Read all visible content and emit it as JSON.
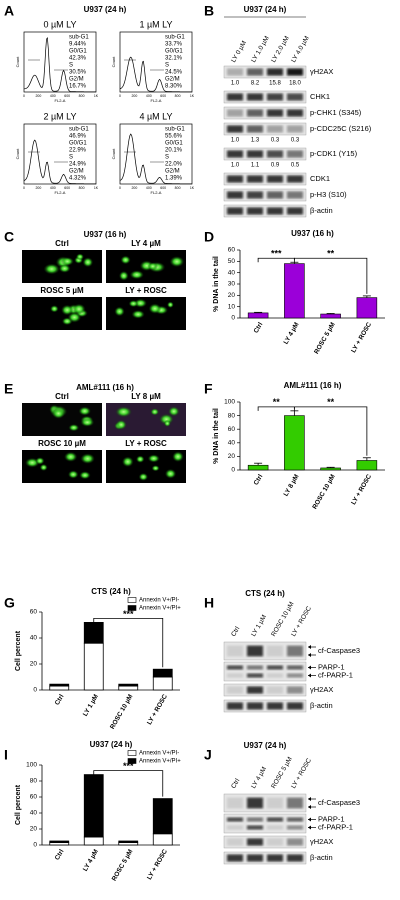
{
  "panels": {
    "A": {
      "label": "A",
      "title": "U937 (24 h)",
      "x_label": "FL2-A",
      "y_label": "Count",
      "x_ticks": [
        "0",
        "200",
        "400",
        "600",
        "800",
        "1K"
      ],
      "histograms": [
        {
          "title": "0 µM LY",
          "stats": [
            "sub-G1",
            "9.44%",
            "G0/G1",
            "42.3%",
            "S",
            "30.5%",
            "G2/M",
            "16.7%"
          ]
        },
        {
          "title": "1 µM LY",
          "stats": [
            "sub-G1",
            "33.7%",
            "G0/G1",
            "32.1%",
            "S",
            "24.5%",
            "G2/M",
            "8.30%"
          ]
        },
        {
          "title": "2 µM LY",
          "stats": [
            "sub-G1",
            "46.9%",
            "G0/G1",
            "22.9%",
            "S",
            "24.9%",
            "G2/M",
            "4.32%"
          ]
        },
        {
          "title": "4 µM LY",
          "stats": [
            "sub-G1",
            "55.6%",
            "G0/G1",
            "20.1%",
            "S",
            "22.0%",
            "G2/M",
            "1.39%"
          ]
        }
      ]
    },
    "B": {
      "label": "B",
      "title": "U937 (24 h)",
      "lanes": [
        "LY 0 µM",
        "LY 1.0 µM",
        "LY 2.0 µM",
        "LY 4.0 µM"
      ],
      "rows": [
        {
          "name": "γH2AX",
          "quant": [
            "1.0",
            "8.2",
            "15.8",
            "18.0"
          ]
        },
        {
          "name": "CHK1"
        },
        {
          "name": "p-CHK1 (S345)"
        },
        {
          "name": "p-CDC25C (S216)",
          "quant": [
            "1.0",
            "1.3",
            "0.3",
            "0.3"
          ]
        },
        {
          "name": "p-CDK1 (Y15)",
          "quant": [
            "1.0",
            "1.1",
            "0.9",
            "0.5"
          ]
        },
        {
          "name": "CDK1"
        },
        {
          "name": "p-H3 (S10)"
        },
        {
          "name": "β-actin"
        }
      ]
    },
    "C": {
      "label": "C",
      "title": "U937 (16 h)",
      "images": [
        "Ctrl",
        "LY 4 µM",
        "ROSC 5 µM",
        "LY + ROSC"
      ]
    },
    "D": {
      "label": "D"
    },
    "E": {
      "label": "E",
      "title": "AML#111 (16 h)",
      "images": [
        "Ctrl",
        "LY 8 µM",
        "ROSC 10 µM",
        "LY + ROSC"
      ]
    },
    "F": {
      "label": "F"
    },
    "G": {
      "label": "G"
    },
    "H": {
      "label": "H",
      "title": "CTS (24 h)",
      "lanes": [
        "Ctrl",
        "LY 1 µM",
        "ROSC 10 µM",
        "LY + ROSC"
      ],
      "rows": [
        {
          "name": "cf-Caspase3"
        },
        {
          "name": "PARP-1"
        },
        {
          "name": "cf-PARP-1"
        },
        {
          "name": "γH2AX"
        },
        {
          "name": "β-actin"
        }
      ]
    },
    "I": {
      "label": "I"
    },
    "J": {
      "label": "J",
      "title": "U937 (24 h)",
      "lanes": [
        "Ctrl",
        "LY 4 µM",
        "ROSC 5 µM",
        "LY + ROSC"
      ],
      "rows": [
        {
          "name": "cf-Caspase3"
        },
        {
          "name": "PARP-1"
        },
        {
          "name": "cf-PARP-1"
        },
        {
          "name": "γH2AX"
        },
        {
          "name": "β-actin"
        }
      ]
    }
  },
  "chart_data": [
    {
      "type": "bar",
      "title": "U937 (16 h)",
      "y_label": "% DNA in the tail",
      "categories": [
        "Ctrl",
        "LY 4 µM",
        "ROSC 5 µM",
        "LY + ROSC"
      ],
      "values": [
        4.5,
        48,
        3.5,
        18
      ],
      "errors": [
        0.5,
        1.2,
        0.5,
        1.5
      ],
      "color": "#9b00d9",
      "ylim": [
        0,
        60
      ],
      "yticks": [
        0,
        10,
        20,
        30,
        40,
        50,
        60
      ],
      "annotations": [
        {
          "text": "***",
          "between": [
            "Ctrl",
            "LY 4 µM"
          ]
        },
        {
          "text": "**",
          "between": [
            "LY 4 µM",
            "LY + ROSC"
          ]
        }
      ]
    },
    {
      "type": "bar",
      "title": "AML#111 (16 h)",
      "y_label": "% DNA in the tail",
      "categories": [
        "Ctrl",
        "LY 8 µM",
        "ROSC 10 µM",
        "LY + ROSC"
      ],
      "values": [
        7,
        80,
        3,
        14
      ],
      "errors": [
        3,
        7,
        1,
        4
      ],
      "color": "#33cc00",
      "ylim": [
        0,
        100
      ],
      "yticks": [
        0,
        20,
        40,
        60,
        80,
        100
      ],
      "annotations": [
        {
          "text": "**",
          "between": [
            "Ctrl",
            "LY 8 µM"
          ]
        },
        {
          "text": "**",
          "between": [
            "LY 8 µM",
            "LY + ROSC"
          ]
        }
      ]
    },
    {
      "type": "stacked_bar",
      "title": "CTS (24 h)",
      "y_label": "Cell percent",
      "categories": [
        "Ctrl",
        "LY 1 µM",
        "ROSC 10 µM",
        "LY + ROSC"
      ],
      "series": [
        {
          "name": "Annexin V+/PI-",
          "color": "#ffffff",
          "values": [
            3,
            36,
            3,
            10
          ]
        },
        {
          "name": "Annexin V+/PI+",
          "color": "#000000",
          "values": [
            1.5,
            16,
            1.5,
            6
          ]
        }
      ],
      "ylim": [
        0,
        60
      ],
      "yticks": [
        0,
        20,
        40,
        60
      ],
      "legend": "upper right",
      "annotations": [
        {
          "text": "***",
          "between": [
            "LY 1 µM",
            "LY + ROSC"
          ]
        }
      ]
    },
    {
      "type": "stacked_bar",
      "title": "U937 (24 h)",
      "y_label": "Cell percent",
      "categories": [
        "Ctrl",
        "LY 4 µM",
        "ROSC 5 µM",
        "LY + ROSC"
      ],
      "series": [
        {
          "name": "Annexin V+/PI-",
          "color": "#ffffff",
          "values": [
            3,
            10,
            3,
            14
          ]
        },
        {
          "name": "Annexin V+/PI+",
          "color": "#000000",
          "values": [
            2,
            78,
            2,
            44
          ]
        }
      ],
      "ylim": [
        0,
        100
      ],
      "yticks": [
        0,
        20,
        40,
        60,
        80,
        100
      ],
      "legend": "upper right",
      "annotations": [
        {
          "text": "***",
          "between": [
            "LY 4 µM",
            "LY + ROSC"
          ]
        }
      ]
    }
  ]
}
